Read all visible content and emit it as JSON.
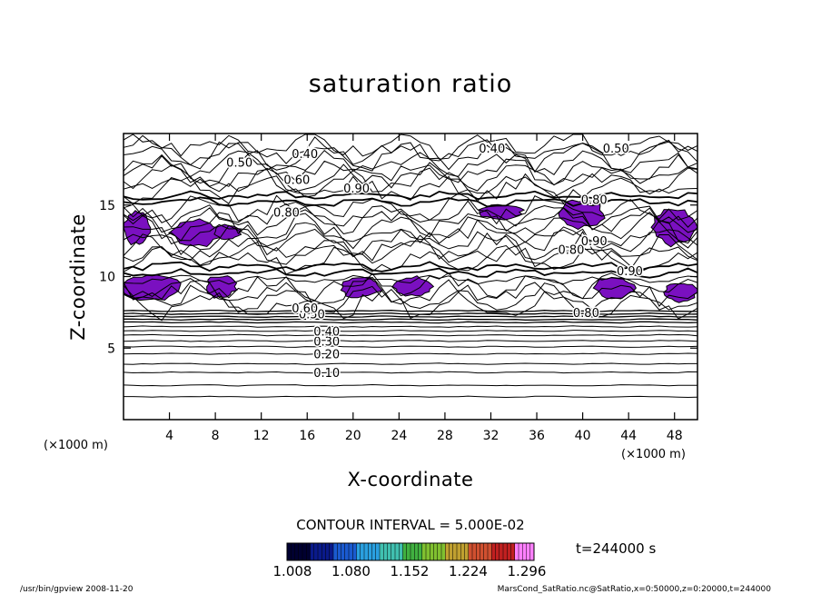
{
  "chart_data": {
    "type": "contour",
    "title": "saturation ratio",
    "xlabel": "X-coordinate",
    "ylabel": "Z-coordinate",
    "x_unit": "(×1000 m)",
    "y_unit": "(×1000 m)",
    "xlim": [
      0,
      50
    ],
    "ylim": [
      0,
      20
    ],
    "x_ticks": [
      4,
      8,
      12,
      16,
      20,
      24,
      28,
      32,
      36,
      40,
      44,
      48
    ],
    "y_ticks": [
      5,
      10,
      15
    ],
    "contour_interval_text": "CONTOUR INTERVAL = 5.000E-02",
    "time_text": "t=244000 s",
    "contour_labels": [
      {
        "text": "0.10",
        "x": 17.7,
        "z": 3.3
      },
      {
        "text": "0.20",
        "x": 17.7,
        "z": 4.6
      },
      {
        "text": "0.30",
        "x": 17.7,
        "z": 5.5
      },
      {
        "text": "0.40",
        "x": 17.7,
        "z": 6.2
      },
      {
        "text": "0.50",
        "x": 16.4,
        "z": 7.4
      },
      {
        "text": "0.60",
        "x": 15.8,
        "z": 7.8
      },
      {
        "text": "0.40",
        "x": 15.8,
        "z": 18.6
      },
      {
        "text": "0.40",
        "x": 32.1,
        "z": 19.0
      },
      {
        "text": "0.50",
        "x": 42.9,
        "z": 19.0
      },
      {
        "text": "0.50",
        "x": 10.1,
        "z": 18.0
      },
      {
        "text": "0.60",
        "x": 15.1,
        "z": 16.8
      },
      {
        "text": "0.90",
        "x": 20.3,
        "z": 16.2
      },
      {
        "text": "0.80",
        "x": 14.2,
        "z": 14.5
      },
      {
        "text": "0.80",
        "x": 41.0,
        "z": 15.4
      },
      {
        "text": "0.80",
        "x": 39.0,
        "z": 11.9
      },
      {
        "text": "0.90",
        "x": 41.0,
        "z": 12.5
      },
      {
        "text": "0.90",
        "x": 44.1,
        "z": 10.4
      },
      {
        "text": "0.80",
        "x": 40.3,
        "z": 7.5
      }
    ],
    "colorbar": {
      "ticks": [
        "1.008",
        "1.080",
        "1.152",
        "1.224",
        "1.296"
      ],
      "colors": [
        "#000030",
        "#0a1a8a",
        "#1a5ad0",
        "#2aa0e0",
        "#40c0b0",
        "#40b040",
        "#80c030",
        "#c0a030",
        "#d05030",
        "#c02020",
        "#ff80ff"
      ]
    },
    "supersaturated_color": "#7a10c0"
  },
  "footer": {
    "left": "/usr/bin/gpview  2008-11-20",
    "right": "MarsCond_SatRatio.nc@SatRatio,x=0:50000,z=0:20000,t=244000"
  }
}
